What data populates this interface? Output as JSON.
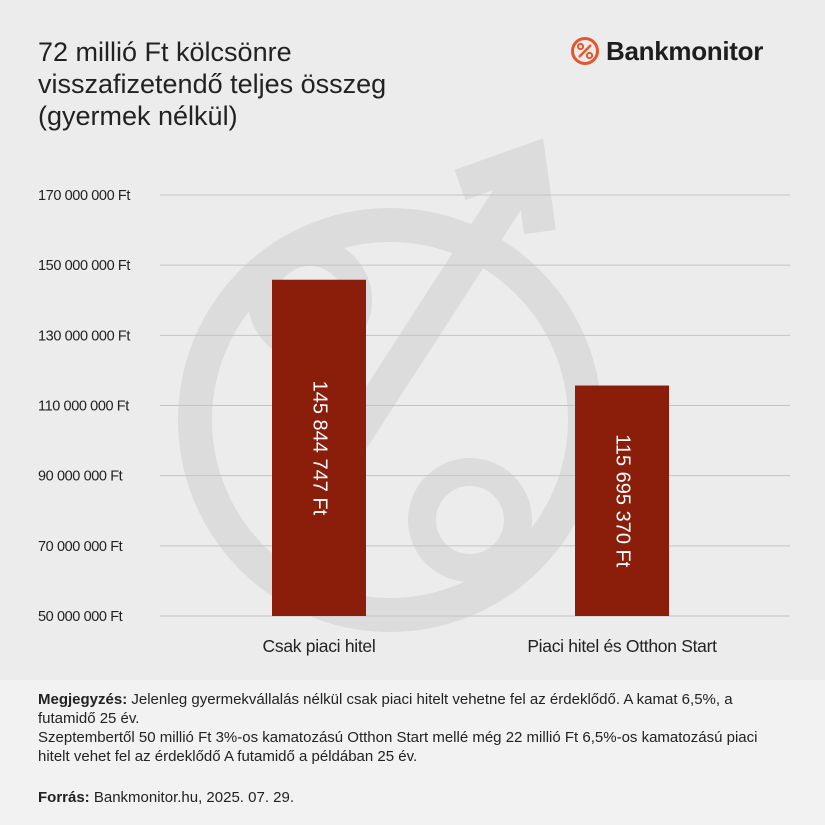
{
  "title_lines": [
    "72 millió Ft kölcsönre",
    "visszafizetendő teljes összeg",
    "(gyermek nélkül)"
  ],
  "brand": {
    "name": "Bankmonitor",
    "icon": "percent-circle-icon",
    "accent": "#e4572e"
  },
  "chart_data": {
    "type": "bar",
    "categories": [
      "Csak piaci hitel",
      "Piaci hitel és Otthon Start"
    ],
    "values": [
      145844747,
      115695370
    ],
    "value_labels": [
      "145 844 747 Ft",
      "115 695 370 Ft"
    ],
    "yticks": [
      50000000,
      70000000,
      90000000,
      110000000,
      130000000,
      150000000,
      170000000
    ],
    "ytick_labels": [
      "50 000 000 Ft",
      "70 000 000 Ft",
      "90 000 000 Ft",
      "110 000 000 Ft",
      "130 000 000 Ft",
      "150 000 000 Ft",
      "170 000 000 Ft"
    ],
    "ylim": [
      50000000,
      170000000
    ],
    "grid": true,
    "bar_color": "#8b1d0b"
  },
  "notes": {
    "label": "Megjegyzés:",
    "line1": "Jelenleg gyermekvállalás nélkül csak piaci hitelt vehetne fel az érdeklődő. A kamat 6,5%, a futamidő 25 év.",
    "line2": "Szeptembertől 50 millió Ft 3%-os kamatozású Otthon Start mellé még 22 millió Ft 6,5%-os kamatozású piaci hitelt vehet fel az érdeklődő A futamidő a példában 25 év."
  },
  "source": {
    "label": "Forrás:",
    "text": "Bankmonitor.hu, 2025. 07. 29."
  }
}
